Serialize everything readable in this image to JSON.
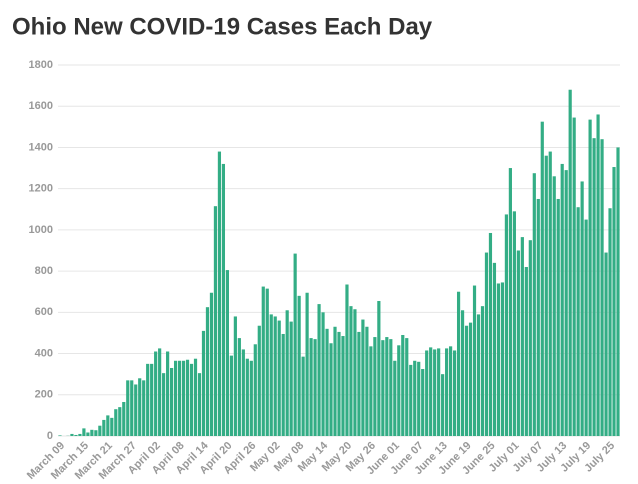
{
  "chart_data": {
    "type": "bar",
    "title": "Ohio New COVID-19 Cases Each Day",
    "categories": [
      "March 09",
      null,
      null,
      null,
      null,
      null,
      "March 15",
      null,
      null,
      null,
      null,
      null,
      "March 21",
      null,
      null,
      null,
      null,
      null,
      "March 27",
      null,
      null,
      null,
      null,
      null,
      "April 02",
      null,
      null,
      null,
      null,
      null,
      "April 08",
      null,
      null,
      null,
      null,
      null,
      "April 14",
      null,
      null,
      null,
      null,
      null,
      "April 20",
      null,
      null,
      null,
      null,
      null,
      "April 26",
      null,
      null,
      null,
      null,
      null,
      "May 02",
      null,
      null,
      null,
      null,
      null,
      "May 08",
      null,
      null,
      null,
      null,
      null,
      "May 14",
      null,
      null,
      null,
      null,
      null,
      "May 20",
      null,
      null,
      null,
      null,
      null,
      "May 26",
      null,
      null,
      null,
      null,
      null,
      "June 01",
      null,
      null,
      null,
      null,
      null,
      "June 07",
      null,
      null,
      null,
      null,
      null,
      "June 13",
      null,
      null,
      null,
      null,
      null,
      "June 19",
      null,
      null,
      null,
      null,
      null,
      "June 25",
      null,
      null,
      null,
      null,
      null,
      "July 01",
      null,
      null,
      null,
      null,
      null,
      "July 07",
      null,
      null,
      null,
      null,
      null,
      "July 13",
      null,
      null,
      null,
      null,
      null,
      "July 19",
      null,
      null,
      null,
      null,
      null,
      "July 25",
      null,
      null
    ],
    "values": [
      3,
      0,
      1,
      10,
      5,
      10,
      37,
      17,
      30,
      28,
      50,
      78,
      100,
      88,
      130,
      140,
      165,
      270,
      270,
      250,
      280,
      270,
      350,
      350,
      410,
      425,
      305,
      410,
      330,
      365,
      365,
      365,
      370,
      350,
      375,
      305,
      510,
      625,
      695,
      1115,
      1380,
      1320,
      805,
      390,
      580,
      475,
      420,
      375,
      365,
      445,
      535,
      725,
      715,
      590,
      580,
      560,
      495,
      610,
      555,
      885,
      680,
      385,
      695,
      475,
      470,
      640,
      600,
      520,
      450,
      530,
      505,
      485,
      735,
      630,
      615,
      505,
      565,
      530,
      435,
      480,
      655,
      465,
      480,
      470,
      365,
      440,
      490,
      475,
      345,
      365,
      360,
      325,
      415,
      430,
      420,
      425,
      300,
      425,
      435,
      415,
      700,
      610,
      535,
      550,
      730,
      590,
      630,
      890,
      985,
      840,
      740,
      745,
      1075,
      1300,
      1090,
      900,
      965,
      820,
      950,
      1275,
      1150,
      1525,
      1360,
      1380,
      1260,
      1150,
      1320,
      1290,
      1680,
      1545,
      1110,
      1235,
      1050,
      1535,
      1445,
      1560,
      1440,
      890,
      1105,
      1305,
      1400
    ],
    "color": "#33ad85",
    "ylim": [
      0,
      1800
    ],
    "yticks": [
      0,
      200,
      400,
      600,
      800,
      1000,
      1200,
      1400,
      1600,
      1800
    ],
    "grid": true
  }
}
